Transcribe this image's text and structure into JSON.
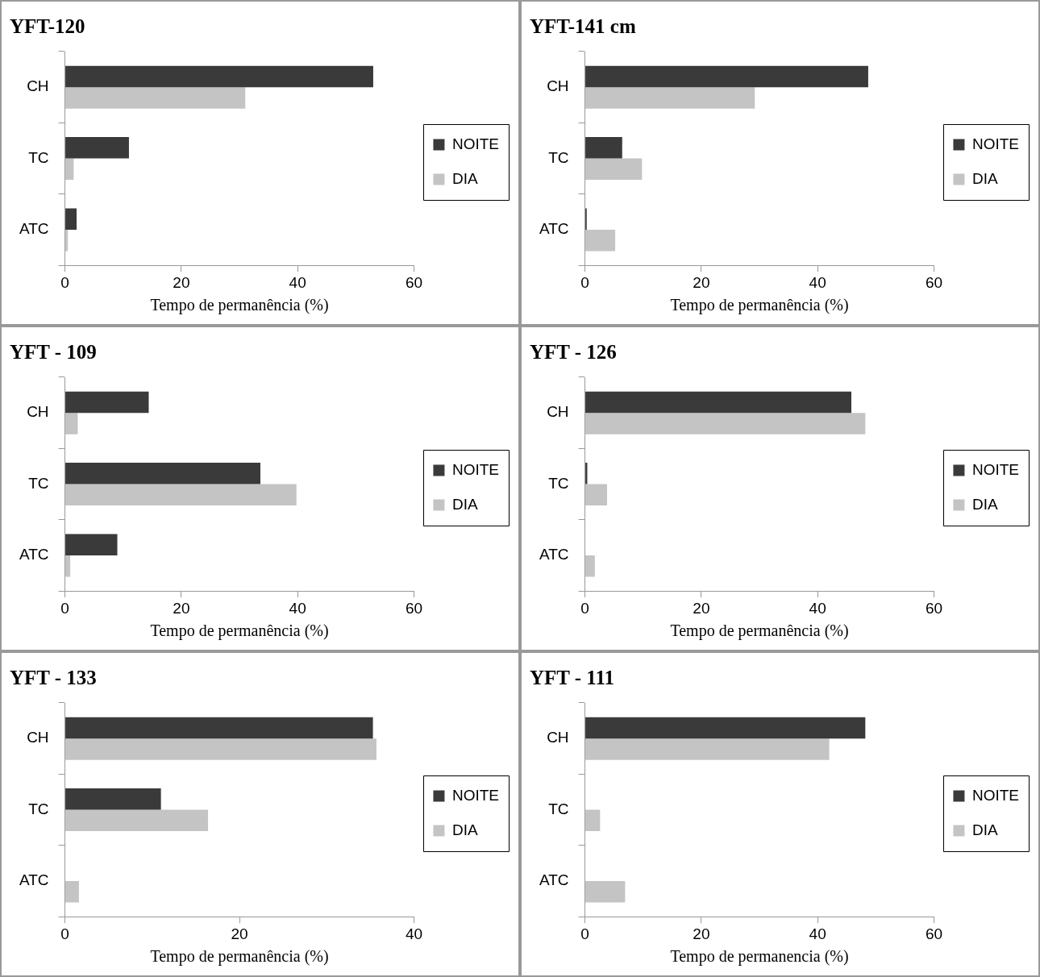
{
  "chart_data": [
    {
      "type": "bar",
      "orientation": "horizontal",
      "title": "YFT-120",
      "xlabel": "Tempo de permanência (%)",
      "categories": [
        "CH",
        "TC",
        "ATC"
      ],
      "series": [
        {
          "name": "NOITE",
          "color": "#3a3a3a",
          "values": [
            53,
            11,
            2
          ]
        },
        {
          "name": "DIA",
          "color": "#c4c4c4",
          "values": [
            31,
            1.5,
            0.5
          ]
        }
      ],
      "xlim": [
        0,
        60
      ],
      "xticks": [
        0,
        20,
        40,
        60
      ],
      "legend": "right",
      "grid": false
    },
    {
      "type": "bar",
      "orientation": "horizontal",
      "title": "YFT-141 cm",
      "xlabel": "Tempo de permanência (%)",
      "categories": [
        "CH",
        "TC",
        "ATC"
      ],
      "series": [
        {
          "name": "NOITE",
          "color": "#3a3a3a",
          "values": [
            48.7,
            6.4,
            0.3
          ]
        },
        {
          "name": "DIA",
          "color": "#c4c4c4",
          "values": [
            29.2,
            9.8,
            5.2
          ]
        }
      ],
      "xlim": [
        0,
        60
      ],
      "xticks": [
        0,
        20,
        40,
        60
      ],
      "legend": "right",
      "grid": false
    },
    {
      "type": "bar",
      "orientation": "horizontal",
      "title": "YFT - 109",
      "xlabel": "Tempo de permanência (%)",
      "categories": [
        "CH",
        "TC",
        "ATC"
      ],
      "series": [
        {
          "name": "NOITE",
          "color": "#3a3a3a",
          "values": [
            14.4,
            33.6,
            9
          ]
        },
        {
          "name": "DIA",
          "color": "#c4c4c4",
          "values": [
            2.2,
            39.8,
            0.9
          ]
        }
      ],
      "xlim": [
        0,
        60
      ],
      "xticks": [
        0,
        20,
        40,
        60
      ],
      "legend": "right",
      "grid": false
    },
    {
      "type": "bar",
      "orientation": "horizontal",
      "title": "YFT - 126",
      "xlabel": "Tempo de permanência (%)",
      "categories": [
        "CH",
        "TC",
        "ATC"
      ],
      "series": [
        {
          "name": "NOITE",
          "color": "#3a3a3a",
          "values": [
            45.8,
            0.4,
            0
          ]
        },
        {
          "name": "DIA",
          "color": "#c4c4c4",
          "values": [
            48.2,
            3.8,
            1.7
          ]
        }
      ],
      "xlim": [
        0,
        60
      ],
      "xticks": [
        0,
        20,
        40,
        60
      ],
      "legend": "right",
      "grid": false
    },
    {
      "type": "bar",
      "orientation": "horizontal",
      "title": "YFT - 133",
      "xlabel": "Tempo de permanência (%)",
      "categories": [
        "CH",
        "TC",
        "ATC"
      ],
      "series": [
        {
          "name": "NOITE",
          "color": "#3a3a3a",
          "values": [
            35.3,
            11,
            0
          ]
        },
        {
          "name": "DIA",
          "color": "#c4c4c4",
          "values": [
            35.7,
            16.4,
            1.6
          ]
        }
      ],
      "xlim": [
        0,
        40
      ],
      "xticks": [
        0,
        20,
        40
      ],
      "legend": "right",
      "grid": false
    },
    {
      "type": "bar",
      "orientation": "horizontal",
      "title": "YFT - 111",
      "xlabel": "Tempo de permanencia (%)",
      "categories": [
        "CH",
        "TC",
        "ATC"
      ],
      "series": [
        {
          "name": "NOITE",
          "color": "#3a3a3a",
          "values": [
            48.2,
            0,
            0
          ]
        },
        {
          "name": "DIA",
          "color": "#c4c4c4",
          "values": [
            42,
            2.6,
            6.9
          ]
        }
      ],
      "xlim": [
        0,
        60
      ],
      "xticks": [
        0,
        20,
        40,
        60
      ],
      "legend": "right",
      "grid": false
    }
  ]
}
